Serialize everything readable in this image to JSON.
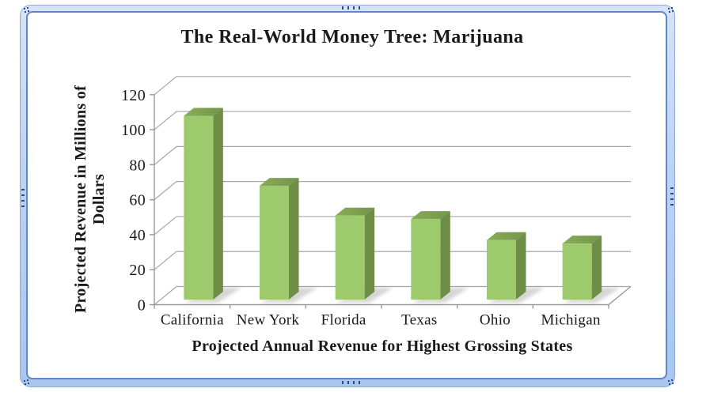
{
  "frame": {
    "style": "rounded blue picture frame",
    "band_color_light": "#D6E3F8",
    "band_color_dark": "#A9C6EE",
    "outer_line_color": "#8FA9D9",
    "inner_line_color": "#5E86CB",
    "handle_dot_color": "#2B4A8B"
  },
  "chart_data": {
    "type": "bar",
    "style": "3d-column",
    "title": "The Real-World Money Tree: Marijuana",
    "xlabel": "Projected Annual Revenue for Highest Grossing States",
    "ylabel": "Projected Revenue in Millions of Dollars",
    "ylabel_lines": [
      "Projected Revenue in Millions of",
      "Dollars"
    ],
    "categories": [
      "California",
      "New York",
      "Florida",
      "Texas",
      "Ohio",
      "Michigan"
    ],
    "values": [
      105,
      65,
      48,
      46,
      34,
      32
    ],
    "ylim": [
      0,
      120
    ],
    "ytick_step": 20,
    "yticks": [
      0,
      20,
      40,
      60,
      80,
      100,
      120
    ],
    "grid": true,
    "legend": "none",
    "background": "#FFFFFF",
    "bar_color_front": "#9CCA6C",
    "bar_color_side": "#6E8E47",
    "bar_color_top_light": "#87AD58",
    "bar_color_top_dark": "#73954A",
    "shadow_color": "#9A9A9A",
    "gridline_color": "#A6A6A6",
    "axis_color": "#999999",
    "text_color": "#1A1A1A"
  }
}
